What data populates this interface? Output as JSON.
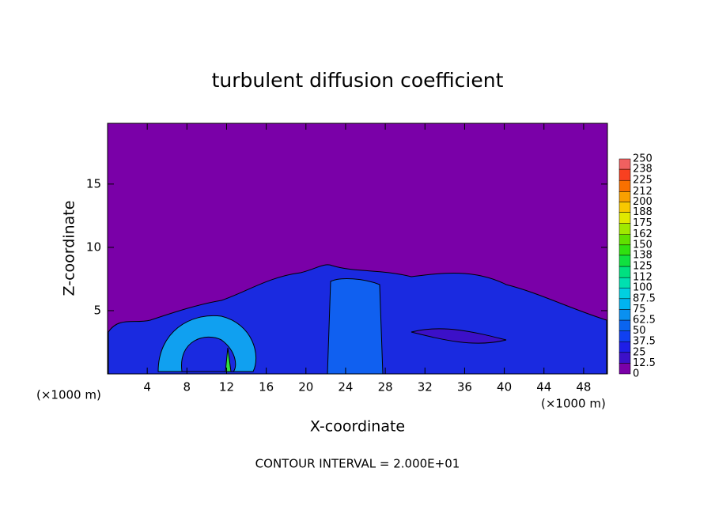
{
  "chart_data": {
    "type": "contour",
    "title": "turbulent diffusion coefficient",
    "x_label": "X-coordinate",
    "y_label": "Z-coordinate",
    "x_unit_left": "(×1000 m)",
    "x_unit_right": "(×1000 m)",
    "footer": "CONTOUR INTERVAL = 2.000E+01",
    "xlim": [
      0,
      50.4
    ],
    "ylim": [
      0,
      19.8
    ],
    "xticks": [
      4,
      8,
      12,
      16,
      20,
      24,
      28,
      32,
      36,
      40,
      44,
      48
    ],
    "yticks": [
      5,
      10,
      15
    ],
    "field_color": "#7a00a8",
    "colorbar_levels": [
      0,
      12.5,
      25,
      37.5,
      50,
      62.5,
      75,
      87.5,
      100,
      112,
      125,
      138,
      150,
      162,
      175,
      188,
      200,
      212,
      225,
      238,
      250
    ],
    "colorbar_colors": [
      "#7a00a8",
      "#3c10c8",
      "#1e1ee6",
      "#1040f0",
      "#0a64f0",
      "#0a90f0",
      "#00b4f0",
      "#00d0e0",
      "#00e0b0",
      "#00e080",
      "#10e040",
      "#30e010",
      "#60e000",
      "#a0e800",
      "#e0e800",
      "#f8c800",
      "#f8a000",
      "#f87000",
      "#f84020",
      "#f06060"
    ]
  }
}
